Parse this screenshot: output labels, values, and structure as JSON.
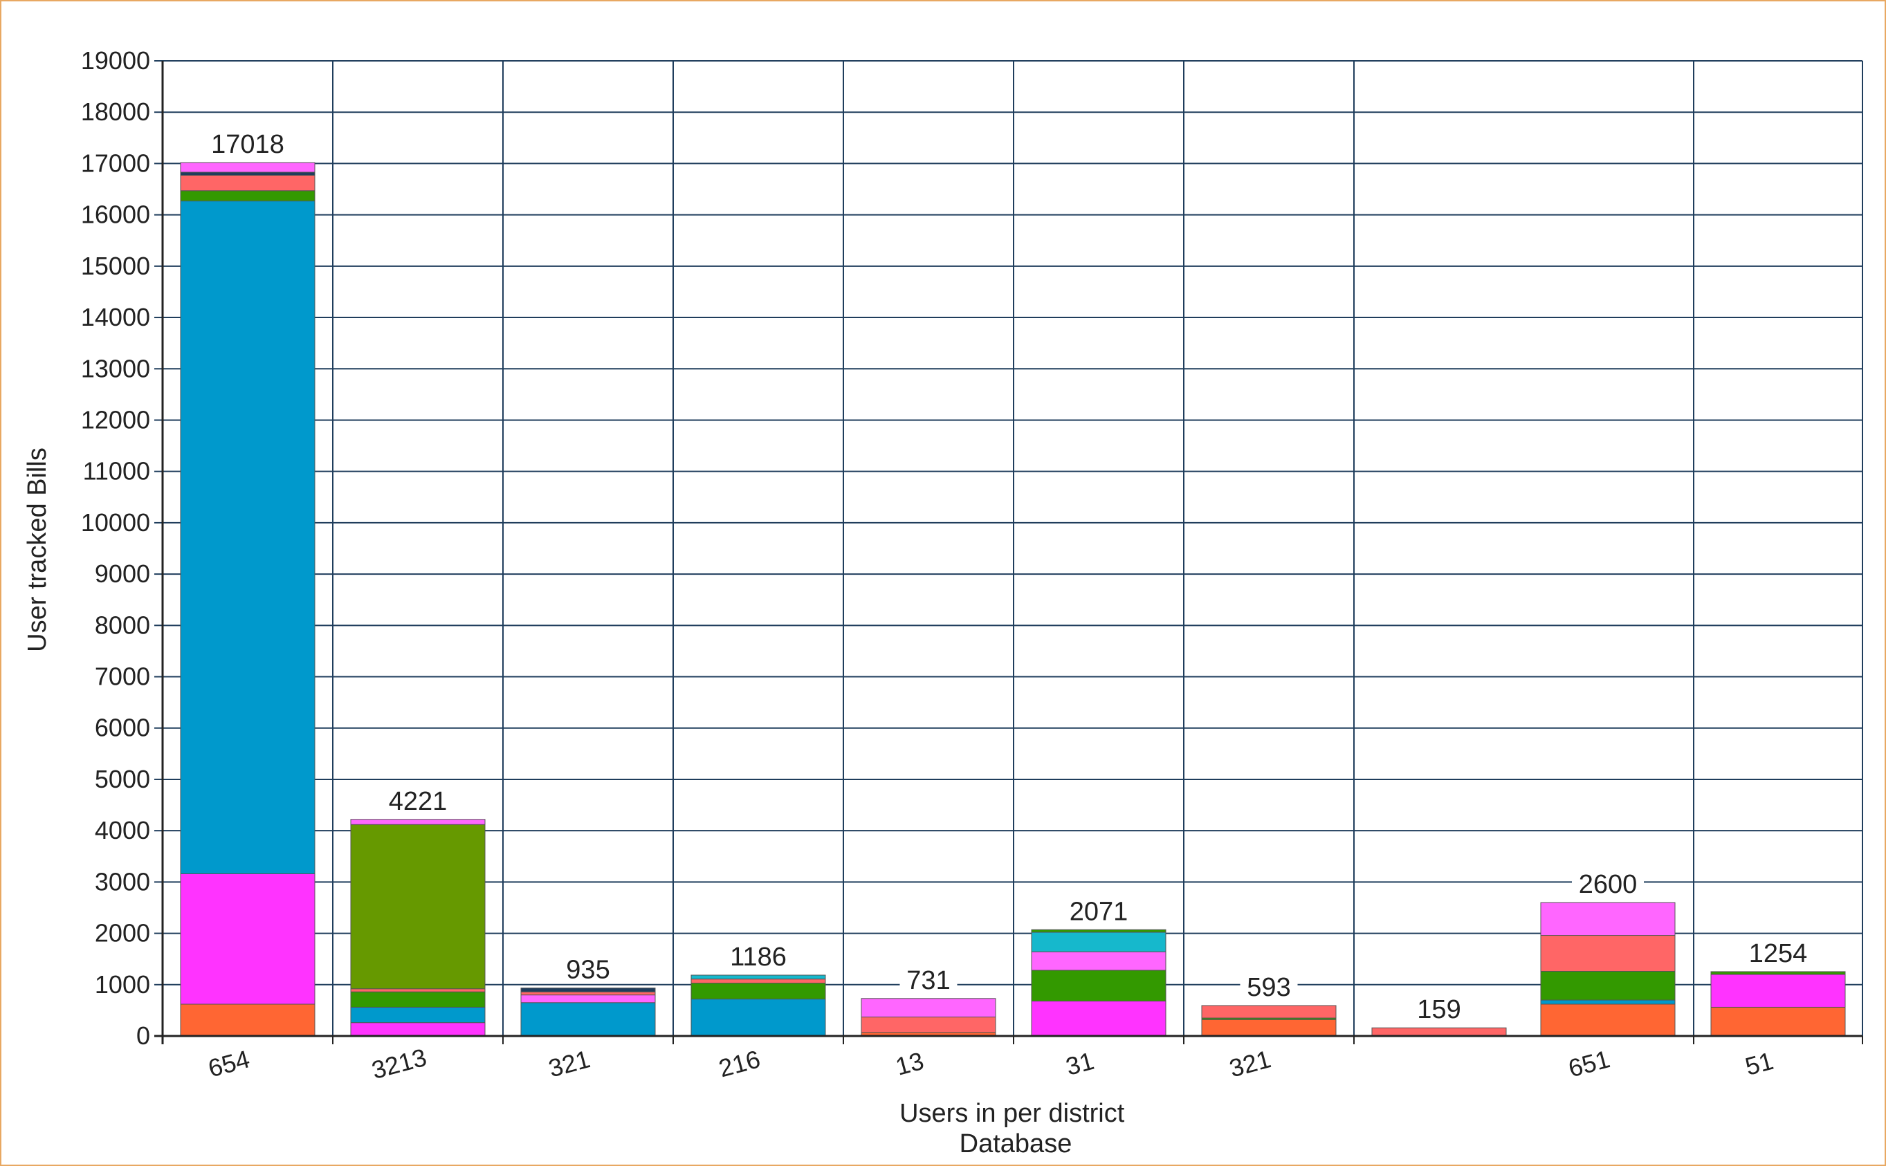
{
  "chart_data": {
    "type": "bar",
    "stacked": true,
    "xlabel": [
      "Users in per district",
      "Database"
    ],
    "ylabel": "User tracked Bills",
    "ylim": [
      0,
      19000
    ],
    "yticks": [
      0,
      1000,
      2000,
      3000,
      4000,
      5000,
      6000,
      7000,
      8000,
      9000,
      10000,
      11000,
      12000,
      13000,
      14000,
      15000,
      16000,
      17000,
      18000,
      19000
    ],
    "grid": true,
    "legend": "none",
    "colors": {
      "orange": "#ff6633",
      "magenta": "#ff33ff",
      "blue": "#0099cc",
      "dark_green": "#669900",
      "green": "#339900",
      "cyan": "#16b8cc",
      "salmon": "#ff6666",
      "pink": "#ff66ff",
      "navy": "#1f3d5c"
    },
    "categories": [
      {
        "label": "654",
        "total": 17018,
        "segments": [
          {
            "color": "orange",
            "value": 620
          },
          {
            "color": "magenta",
            "value": 2540
          },
          {
            "color": "blue",
            "value": 13110
          },
          {
            "color": "green",
            "value": 200
          },
          {
            "color": "salmon",
            "value": 300
          },
          {
            "color": "navy",
            "value": 60
          },
          {
            "color": "pink",
            "value": 188
          }
        ]
      },
      {
        "label": "3213",
        "total": 4221,
        "segments": [
          {
            "color": "magenta",
            "value": 260
          },
          {
            "color": "blue",
            "value": 300
          },
          {
            "color": "green",
            "value": 300
          },
          {
            "color": "salmon",
            "value": 60
          },
          {
            "color": "dark_green",
            "value": 3200
          },
          {
            "color": "pink",
            "value": 101
          }
        ]
      },
      {
        "label": "321",
        "total": 935,
        "segments": [
          {
            "color": "blue",
            "value": 650
          },
          {
            "color": "pink",
            "value": 150
          },
          {
            "color": "salmon",
            "value": 60
          },
          {
            "color": "navy",
            "value": 75
          }
        ]
      },
      {
        "label": "216",
        "total": 1186,
        "segments": [
          {
            "color": "blue",
            "value": 720
          },
          {
            "color": "green",
            "value": 310
          },
          {
            "color": "salmon",
            "value": 80
          },
          {
            "color": "cyan",
            "value": 76
          }
        ]
      },
      {
        "label": "13",
        "total": 731,
        "segments": [
          {
            "color": "orange",
            "value": 70
          },
          {
            "color": "salmon",
            "value": 300
          },
          {
            "color": "pink",
            "value": 361
          }
        ]
      },
      {
        "label": "31",
        "total": 2071,
        "segments": [
          {
            "color": "magenta",
            "value": 680
          },
          {
            "color": "green",
            "value": 600
          },
          {
            "color": "pink",
            "value": 360
          },
          {
            "color": "cyan",
            "value": 381
          },
          {
            "color": "green",
            "value": 50
          }
        ]
      },
      {
        "label": "321",
        "total": 593,
        "segments": [
          {
            "color": "orange",
            "value": 320
          },
          {
            "color": "green",
            "value": 30
          },
          {
            "color": "salmon",
            "value": 243
          }
        ]
      },
      {
        "label": "",
        "total": 159,
        "segments": [
          {
            "color": "salmon",
            "value": 159
          }
        ]
      },
      {
        "label": "651",
        "total": 2600,
        "segments": [
          {
            "color": "orange",
            "value": 620
          },
          {
            "color": "blue",
            "value": 80
          },
          {
            "color": "green",
            "value": 560
          },
          {
            "color": "salmon",
            "value": 700
          },
          {
            "color": "pink",
            "value": 640
          }
        ]
      },
      {
        "label": "51",
        "total": 1254,
        "segments": [
          {
            "color": "orange",
            "value": 560
          },
          {
            "color": "magenta",
            "value": 640
          },
          {
            "color": "green",
            "value": 54
          }
        ]
      }
    ]
  }
}
